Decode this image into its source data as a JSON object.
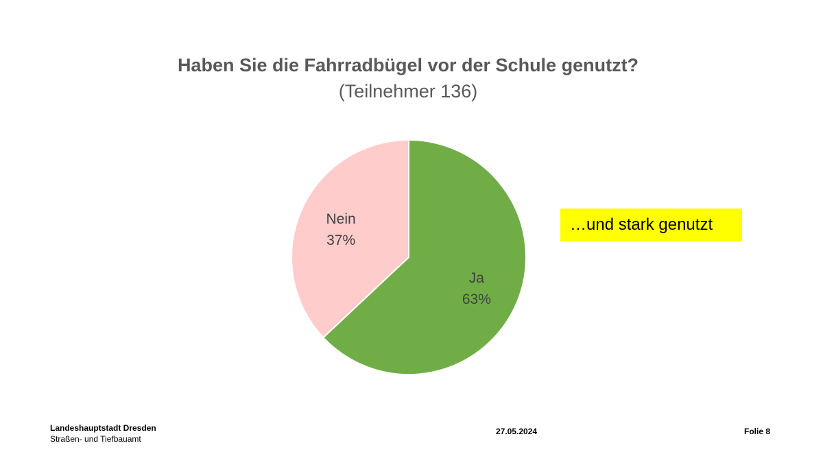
{
  "chart_data": {
    "type": "pie",
    "title": "Haben Sie die Fahrradbügel vor der Schule genutzt?",
    "subtitle": "(Teilnehmer 136)",
    "slices": [
      {
        "label": "Ja",
        "value": 63,
        "value_label": "63%",
        "color": "#70ad47"
      },
      {
        "label": "Nein",
        "value": 37,
        "value_label": "37%",
        "color": "#ffcccc"
      }
    ]
  },
  "callout": {
    "text": "…und stark genutzt",
    "background": "#ffff00"
  },
  "footer": {
    "org_line1": "Landeshauptstadt Dresden",
    "org_line2": "Straßen- und Tiefbauamt",
    "date": "27.05.2024",
    "slide": "Folie 8"
  }
}
